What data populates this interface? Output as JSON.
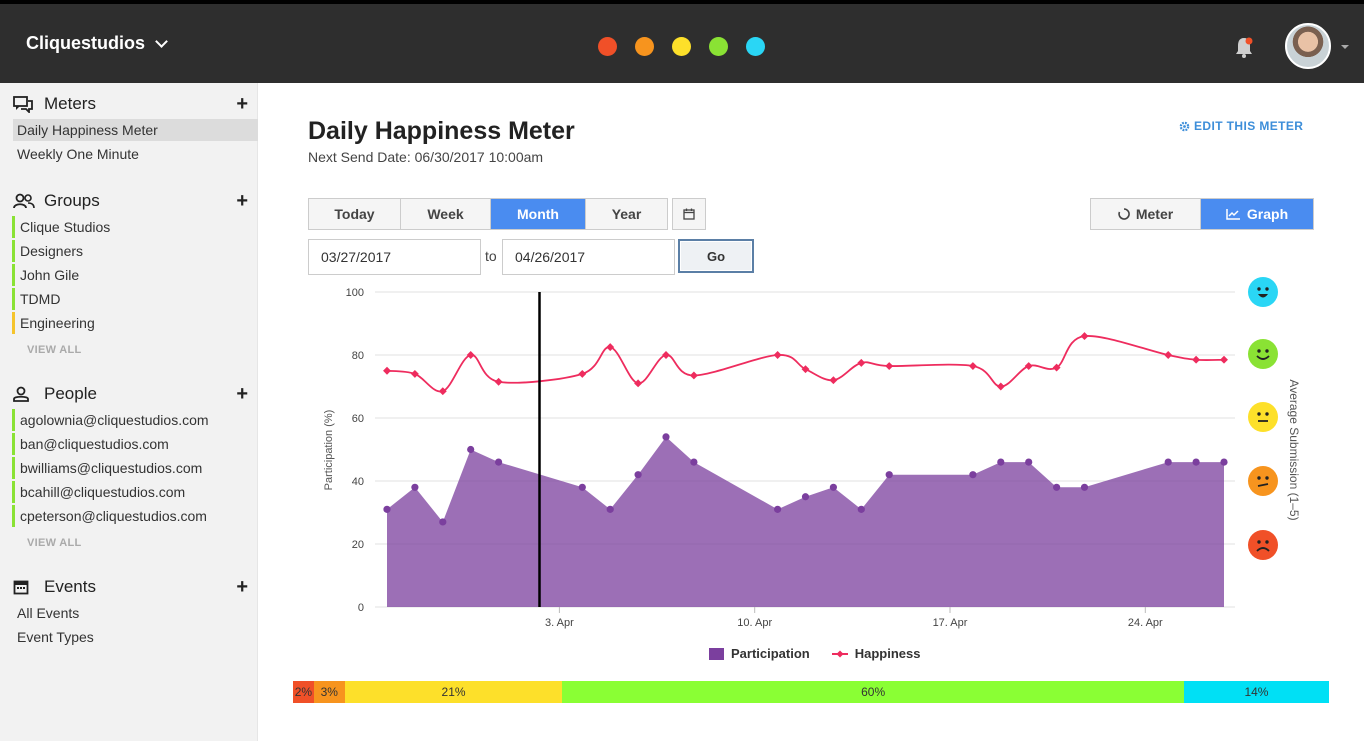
{
  "topbar": {
    "brand": "Cliquestudios",
    "color_dots": [
      "#f05028",
      "#f7941e",
      "#fde02a",
      "#8ae234",
      "#2ad6f5"
    ]
  },
  "sidebar": {
    "meters": {
      "title": "Meters",
      "items": [
        "Daily Happiness Meter",
        "Weekly One Minute"
      ]
    },
    "groups": {
      "title": "Groups",
      "items": [
        "Clique Studios",
        "Designers",
        "John Gile",
        "TDMD",
        "Engineering"
      ],
      "view_all": "VIEW ALL"
    },
    "people": {
      "title": "People",
      "items": [
        "agolownia@cliquestudios.com",
        "ban@cliquestudios.com",
        "bwilliams@cliquestudios.com",
        "bcahill@cliquestudios.com",
        "cpeterson@cliquestudios.com"
      ],
      "view_all": "VIEW ALL"
    },
    "events": {
      "title": "Events",
      "items": [
        "All Events",
        "Event Types"
      ]
    }
  },
  "main": {
    "title": "Daily Happiness Meter",
    "subtitle": "Next Send Date: 06/30/2017 10:00am",
    "edit_link": "EDIT THIS METER",
    "range_tabs": [
      "Today",
      "Week",
      "Month",
      "Year"
    ],
    "active_range": "Month",
    "view_tabs": [
      "Meter",
      "Graph"
    ],
    "active_view": "Graph",
    "date_from": "03/27/2017",
    "date_to": "04/26/2017",
    "to_label": "to",
    "go_label": "Go"
  },
  "chart_data": {
    "type": "area",
    "x": [
      "Mar 28",
      "Mar 29",
      "Mar 30",
      "Mar 31",
      "Apr 1",
      "Apr 4",
      "Apr 5",
      "Apr 6",
      "Apr 7",
      "Apr 8",
      "Apr 11",
      "Apr 12",
      "Apr 13",
      "Apr 14",
      "Apr 15",
      "Apr 18",
      "Apr 19",
      "Apr 20",
      "Apr 21",
      "Apr 22",
      "Apr 25",
      "Apr 26",
      "Apr 27"
    ],
    "series": [
      {
        "name": "Participation",
        "type": "area",
        "color": "#7b3f9e",
        "values": [
          31,
          38,
          27,
          50,
          46,
          38,
          31,
          42,
          54,
          46,
          31,
          35,
          38,
          31,
          42,
          42,
          46,
          46,
          38,
          38,
          46,
          46,
          46
        ]
      },
      {
        "name": "Happiness",
        "type": "line",
        "color": "#ee2c5e",
        "values": [
          75,
          74,
          68.5,
          80,
          71.5,
          74,
          82.5,
          71,
          80,
          73.5,
          80,
          75.5,
          72,
          77.5,
          76.5,
          76.5,
          70,
          76.5,
          76,
          86,
          80,
          78.5,
          78.5
        ]
      }
    ],
    "y_ticks": [
      0,
      20,
      40,
      60,
      80,
      100
    ],
    "x_tick_labels": [
      "3. Apr",
      "10. Apr",
      "17. Apr",
      "24. Apr"
    ],
    "ylabel": "Participation (%)",
    "ylabel_right": "Average Submission (1–5)",
    "ylim": [
      0,
      100
    ],
    "marker_date": "Apr 2",
    "grid": true,
    "legend": "bottom-center"
  },
  "distribution": [
    {
      "label": "2%",
      "value": 2,
      "color": "#f05028"
    },
    {
      "label": "3%",
      "value": 3,
      "color": "#f7941e"
    },
    {
      "label": "21%",
      "value": 21,
      "color": "#fde02a"
    },
    {
      "label": "60%",
      "value": 60,
      "color": "#8aff34"
    },
    {
      "label": "14%",
      "value": 14,
      "color": "#00e0f5"
    }
  ],
  "faces": [
    {
      "name": "very-happy-face-icon",
      "color": "#2ad6f5"
    },
    {
      "name": "happy-face-icon",
      "color": "#8ae234"
    },
    {
      "name": "neutral-face-icon",
      "color": "#fde02a"
    },
    {
      "name": "unhappy-face-icon",
      "color": "#f7941e"
    },
    {
      "name": "sad-face-icon",
      "color": "#f05028"
    }
  ]
}
